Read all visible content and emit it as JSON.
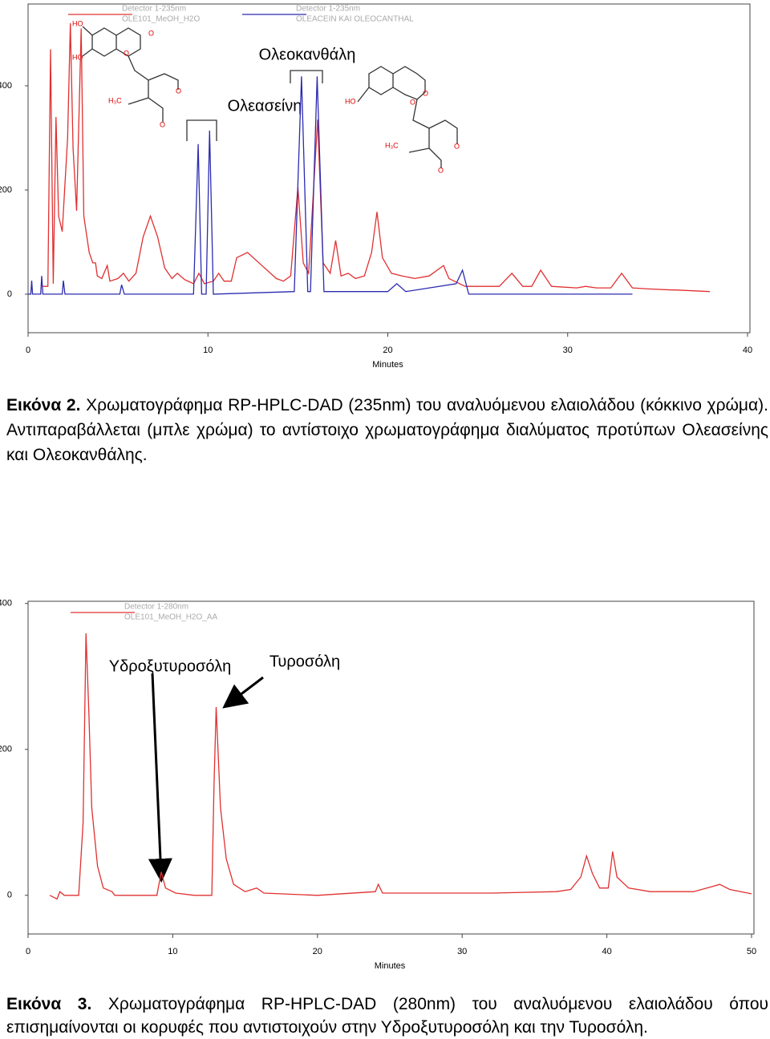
{
  "chart_data": [
    {
      "type": "line",
      "xlabel": "Minutes",
      "xlim": [
        0,
        40
      ],
      "xticks": [
        0,
        10,
        20,
        30,
        40
      ],
      "ylim": [
        -74,
        557
      ],
      "yticks": [
        0,
        200,
        400
      ],
      "series": [
        {
          "name": "OLE101_MeOH_H2O",
          "detector": "Detector 1-235nm",
          "color": "#e03030",
          "x": [
            0.8,
            1.1,
            1.25,
            1.4,
            1.55,
            1.7,
            1.9,
            2.2,
            2.35,
            2.5,
            2.7,
            2.95,
            3.1,
            3.4,
            3.6,
            3.75,
            3.85,
            4.1,
            4.4,
            4.55,
            5.0,
            5.3,
            5.6,
            6.0,
            6.4,
            6.8,
            7.2,
            7.6,
            8.0,
            8.3,
            8.7,
            9.2,
            9.5,
            9.8,
            10.3,
            10.6,
            10.9,
            11.3,
            11.6,
            12.2,
            13,
            13.8,
            14.2,
            14.6,
            15.0,
            15.3,
            15.6,
            16.1,
            16.4,
            16.8,
            17.1,
            17.4,
            17.8,
            18.2,
            18.7,
            19.1,
            19.4,
            19.7,
            20.2,
            20.8,
            21.5,
            22.3,
            23.1,
            23.4,
            24.3,
            25.0,
            26.2,
            26.9,
            27.5,
            28.0,
            28.5,
            29.1,
            30.5,
            31.0,
            31.6,
            32.4,
            33.0,
            33.6,
            34.5,
            35.8,
            36.0,
            37.9
          ],
          "values": [
            15,
            15,
            470,
            20,
            340,
            150,
            120,
            300,
            520,
            280,
            160,
            510,
            150,
            80,
            60,
            60,
            35,
            30,
            55,
            25,
            30,
            40,
            25,
            40,
            110,
            150,
            110,
            50,
            30,
            40,
            28,
            20,
            40,
            20,
            25,
            40,
            25,
            25,
            70,
            80,
            55,
            30,
            25,
            35,
            205,
            60,
            40,
            335,
            60,
            40,
            103,
            35,
            40,
            30,
            35,
            80,
            158,
            70,
            40,
            35,
            30,
            35,
            55,
            30,
            15,
            15,
            15,
            40,
            15,
            15,
            46,
            15,
            12,
            15,
            12,
            12,
            40,
            12,
            10,
            8,
            8,
            5
          ]
        },
        {
          "name": "OLEACEIN KAI OLEOCANTHAL",
          "detector": "Detector 1-235nm",
          "color": "#2b2bb0",
          "x": [
            0,
            0.15,
            0.2,
            0.25,
            0.7,
            0.76,
            0.82,
            1.9,
            1.96,
            2.05,
            5.1,
            5.2,
            5.35,
            9.2,
            9.46,
            9.65,
            9.9,
            10.09,
            10.3,
            14.8,
            15.2,
            15.55,
            15.7,
            16.07,
            16.45,
            20.0,
            20.5,
            21,
            23.8,
            24.15,
            24.5,
            33.6
          ],
          "values": [
            0,
            0,
            26,
            0,
            0,
            35,
            0,
            0,
            26,
            0,
            0,
            18,
            0,
            0,
            288,
            0,
            0,
            314,
            0,
            5,
            418,
            5,
            5,
            418,
            5,
            5,
            20,
            5,
            20,
            46,
            0,
            0
          ]
        }
      ],
      "annotations": [
        "Ολεασείνη",
        "Ολεοκανθάλη"
      ],
      "structures": [
        [
          "HO",
          "HO",
          "O",
          "O",
          "H₃C",
          "O",
          "O"
        ],
        [
          "HO",
          "O",
          "O",
          "H₃C",
          "O",
          "O"
        ]
      ]
    },
    {
      "type": "line",
      "xlabel": "Minutes",
      "xlim": [
        0,
        50
      ],
      "xticks": [
        0,
        10,
        20,
        30,
        40,
        50
      ],
      "ylim": [
        -53,
        403
      ],
      "yticks": [
        0,
        200,
        400
      ],
      "series": [
        {
          "name": "OLE101_MeOH_H2O_AA",
          "detector": "Detector 1-280nm",
          "color": "#e03030",
          "x": [
            1.5,
            2.0,
            2.2,
            2.5,
            3.5,
            3.8,
            4.0,
            4.2,
            4.4,
            4.8,
            5.2,
            5.8,
            6,
            8.9,
            9.2,
            9.5,
            10.2,
            11.5,
            12.7,
            12.85,
            13.0,
            13.3,
            13.7,
            14.2,
            15,
            15.8,
            16.3,
            20,
            24,
            24.2,
            24.5,
            32,
            36.5,
            37.5,
            38.2,
            38.6,
            39,
            39.5,
            40.1,
            40.4,
            40.7,
            41.5,
            43,
            46,
            47.3,
            47.8,
            48.5,
            50
          ],
          "values": [
            0,
            -5,
            5,
            0,
            0,
            100,
            359,
            250,
            120,
            40,
            10,
            5,
            0,
            0,
            32,
            10,
            3,
            0,
            0,
            150,
            258,
            120,
            50,
            15,
            5,
            10,
            3,
            0,
            5,
            15,
            3,
            3,
            5,
            8,
            25,
            54,
            30,
            10,
            10,
            60,
            25,
            10,
            5,
            5,
            12,
            15,
            8,
            2
          ]
        }
      ],
      "annotations": [
        "Υδροξυτυροσόλη",
        "Τυροσόλη"
      ]
    }
  ],
  "captions": [
    {
      "label": "Εικόνα 2.",
      "text": "Χρωματογράφημα RP-HPLC-DAD (235nm) του αναλυόμενου ελαιολάδου (κόκκινο χρώμα). Αντιπαραβάλλεται (μπλε χρώμα) το αντίστοιχο χρωματογράφημα διαλύματος προτύπων Ολεασείνης και Ολεοκανθάλης."
    },
    {
      "label": "Εικόνα 3.",
      "text": "Χρωματογράφημα RP-HPLC-DAD (280nm) του αναλυόμενου ελαιολάδου όπου επισημαίνονται οι κορυφές που αντιστοιχούν στην Υδροξυτυροσόλη και την Τυροσόλη."
    }
  ]
}
